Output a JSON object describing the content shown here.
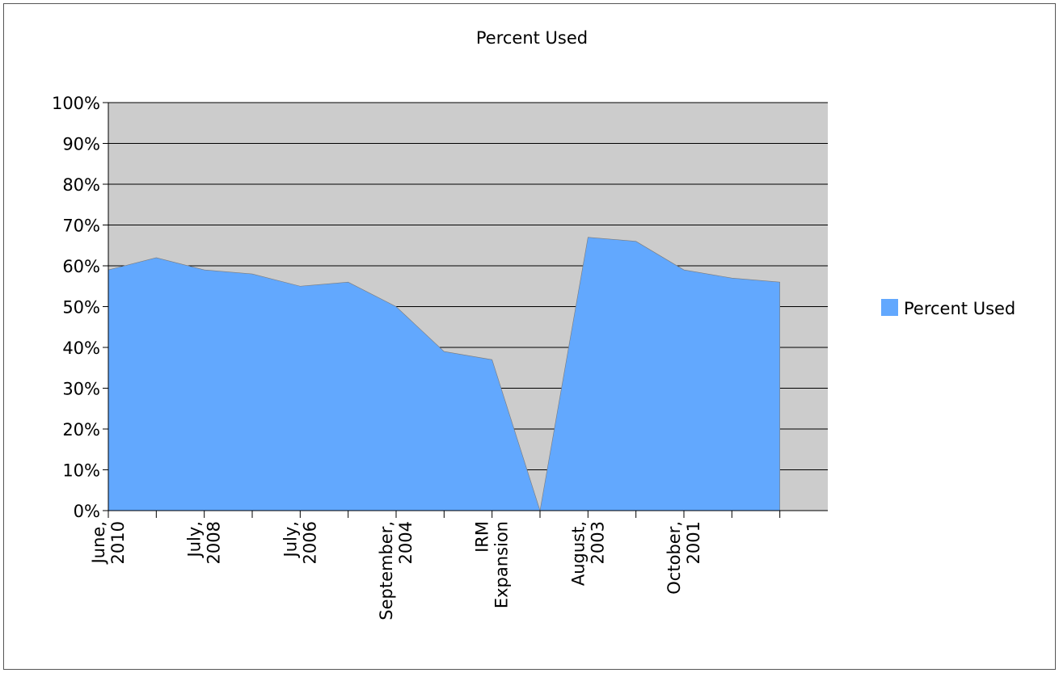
{
  "chart_data": {
    "type": "area",
    "title": "Percent Used",
    "xlabel": "",
    "ylabel": "",
    "categories": [
      "June, 2010",
      "",
      "July, 2008",
      "",
      "July, 2006",
      "",
      "September, 2004",
      "",
      "IRM Expansion",
      "",
      "August, 2003",
      "",
      "October, 2001",
      "",
      ""
    ],
    "series": [
      {
        "name": "Percent Used",
        "color": "#62a8fe",
        "values": [
          59,
          62,
          59,
          58,
          55,
          56,
          50,
          39,
          37,
          0,
          67,
          66,
          59,
          57,
          56
        ]
      }
    ],
    "ylim": [
      0,
      100
    ],
    "yticks": [
      "0%",
      "10%",
      "20%",
      "30%",
      "40%",
      "50%",
      "60%",
      "70%",
      "80%",
      "90%",
      "100%"
    ],
    "grid": true,
    "plot_background": "#cccccc",
    "legend": "right"
  }
}
